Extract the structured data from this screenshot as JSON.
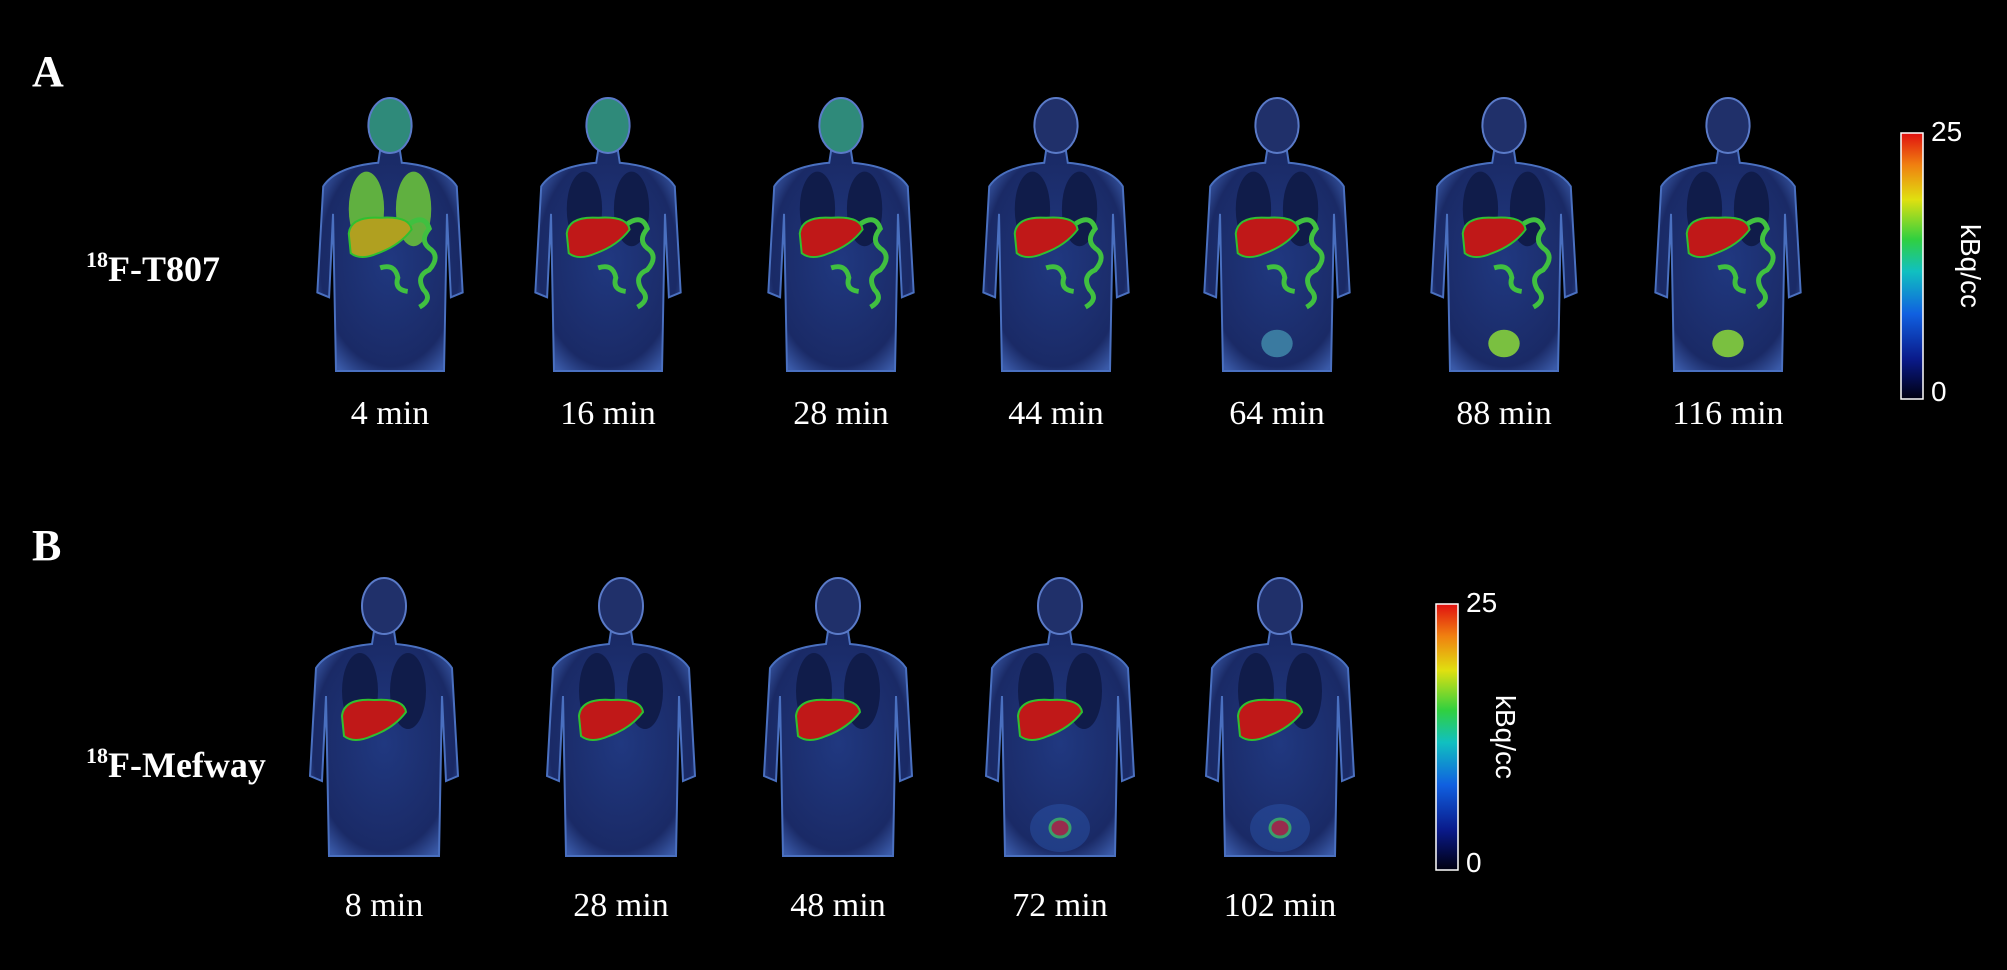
{
  "panels": [
    {
      "letter": "A",
      "tracer": {
        "sup": "18",
        "name": "F-T807"
      },
      "times": [
        "4 min",
        "16 min",
        "28 min",
        "44 min",
        "64 min",
        "88 min",
        "116 min"
      ],
      "colorbar": {
        "label": "kBq/cc",
        "ticks": [
          25,
          0
        ]
      }
    },
    {
      "letter": "B",
      "tracer": {
        "sup": "18",
        "name": "F-Mefway"
      },
      "times": [
        "8 min",
        "28 min",
        "48 min",
        "72 min",
        "102 min"
      ],
      "colorbar": {
        "label": "kBq/cc",
        "ticks": [
          25,
          0
        ]
      }
    }
  ]
}
